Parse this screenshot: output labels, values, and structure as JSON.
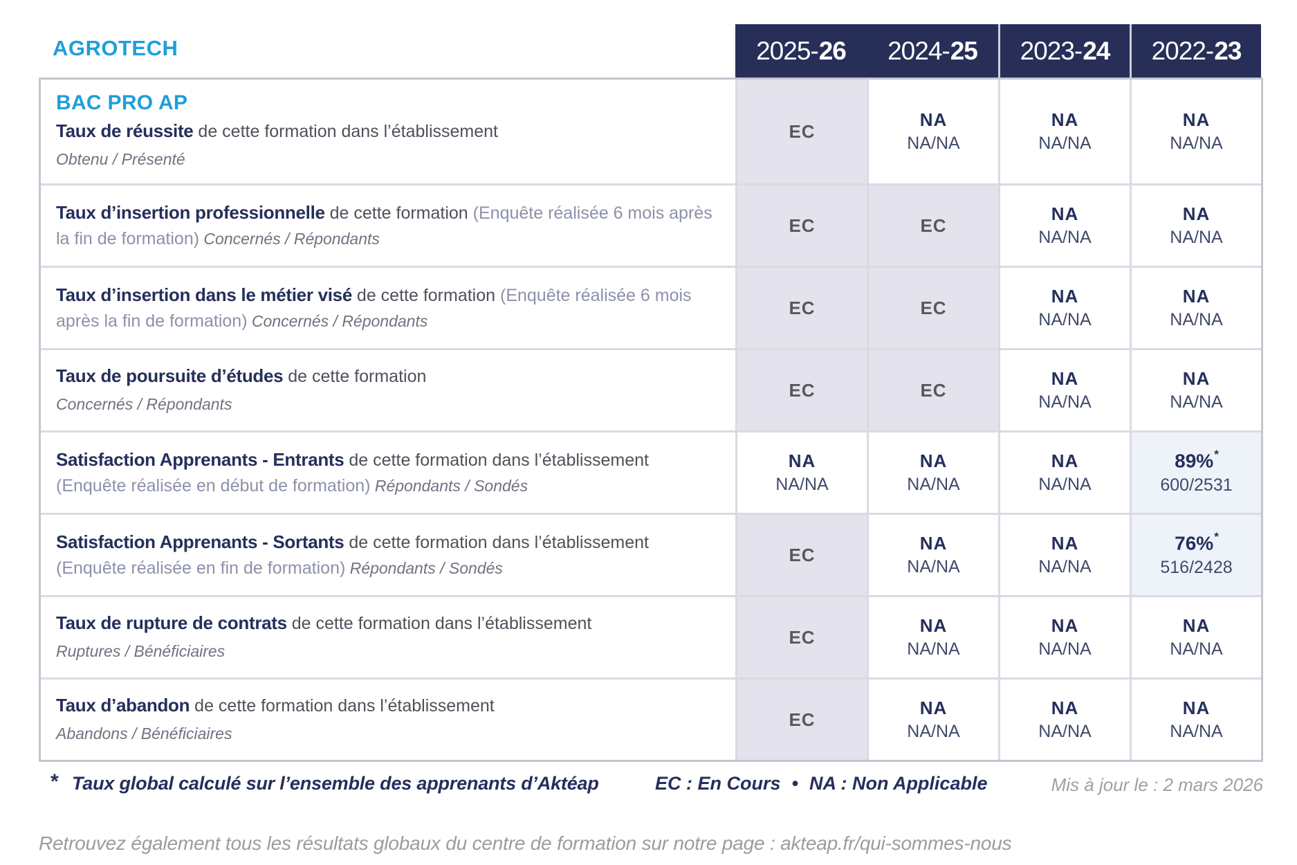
{
  "brand": {
    "title": "AGROTECH"
  },
  "header": {
    "columns": [
      {
        "prefix": "2025-",
        "bold": "26"
      },
      {
        "prefix": "2024-",
        "bold": "25"
      },
      {
        "prefix": "2023-",
        "bold": "24"
      },
      {
        "prefix": "2022-",
        "bold": "23"
      }
    ]
  },
  "table": {
    "program": "BAC PRO AP",
    "rows": [
      {
        "title": "Taux de réussite",
        "mid": " de cette formation dans l’établissement",
        "sub": "Obtenu / Présenté",
        "cells": [
          {
            "value": "EC"
          },
          {
            "value": "NA",
            "sub": "NA/NA"
          },
          {
            "value": "NA",
            "sub": "NA/NA"
          },
          {
            "value": "NA",
            "sub": "NA/NA"
          }
        ]
      },
      {
        "title": "Taux d’insertion professionnelle",
        "mid": " de cette formation ",
        "paren": "(Enquête réalisée 6 mois après la fin de formation)",
        "sub": " Concernés / Répondants",
        "cells": [
          {
            "value": "EC"
          },
          {
            "value": "EC"
          },
          {
            "value": "NA",
            "sub": "NA/NA"
          },
          {
            "value": "NA",
            "sub": "NA/NA"
          }
        ]
      },
      {
        "title": "Taux d’insertion dans le métier visé",
        "mid": " de cette formation ",
        "paren": "(Enquête réalisée 6 mois après la fin de formation)",
        "sub": " Concernés / Répondants",
        "cells": [
          {
            "value": "EC"
          },
          {
            "value": "EC"
          },
          {
            "value": "NA",
            "sub": "NA/NA"
          },
          {
            "value": "NA",
            "sub": "NA/NA"
          }
        ]
      },
      {
        "title": "Taux de poursuite d’études",
        "mid": " de cette formation",
        "sub": "Concernés / Répondants",
        "cells": [
          {
            "value": "EC"
          },
          {
            "value": "EC"
          },
          {
            "value": "NA",
            "sub": "NA/NA"
          },
          {
            "value": "NA",
            "sub": "NA/NA"
          }
        ]
      },
      {
        "title": "Satisfaction Apprenants - Entrants",
        "mid": " de cette formation dans l’établissement ",
        "paren": "(Enquête réalisée en début de formation)",
        "sub": " Répondants / Sondés",
        "cells": [
          {
            "value": "NA",
            "sub": "NA/NA"
          },
          {
            "value": "NA",
            "sub": "NA/NA"
          },
          {
            "value": "NA",
            "sub": "NA/NA"
          },
          {
            "value": "89%",
            "sup": "*",
            "sub": "600/2531"
          }
        ]
      },
      {
        "title": "Satisfaction Apprenants - Sortants",
        "mid": " de cette formation dans l’établissement ",
        "paren": "(Enquête réalisée en fin de formation)",
        "sub": " Répondants / Sondés",
        "cells": [
          {
            "value": "EC"
          },
          {
            "value": "NA",
            "sub": "NA/NA"
          },
          {
            "value": "NA",
            "sub": "NA/NA"
          },
          {
            "value": "76%",
            "sup": "*",
            "sub": "516/2428"
          }
        ]
      },
      {
        "title": "Taux de rupture de contrats",
        "mid": " de cette formation dans l’établissement",
        "sub": "Ruptures / Bénéficiaires",
        "cells": [
          {
            "value": "EC"
          },
          {
            "value": "NA",
            "sub": "NA/NA"
          },
          {
            "value": "NA",
            "sub": "NA/NA"
          },
          {
            "value": "NA",
            "sub": "NA/NA"
          }
        ]
      },
      {
        "title": "Taux d’abandon",
        "mid": " de cette formation dans l’établissement",
        "sub": "Abandons / Bénéficiaires",
        "cells": [
          {
            "value": "EC"
          },
          {
            "value": "NA",
            "sub": "NA/NA"
          },
          {
            "value": "NA",
            "sub": "NA/NA"
          },
          {
            "value": "NA",
            "sub": "NA/NA"
          }
        ]
      }
    ]
  },
  "footer": {
    "star": "*",
    "note": "Taux global calculé sur l’ensemble des apprenants d’Aktéap",
    "legend_ec": "EC : En Cours",
    "bullet": "•",
    "legend_na": "NA : Non Applicable",
    "updated": "Mis à jour le : 2 mars 2026"
  },
  "bottom_note": "Retrouvez également tous les résultats globaux du centre de formation sur notre page : akteap.fr/qui-sommes-nous",
  "colors": {
    "navy": "#272f58",
    "cyan": "#1e9fda",
    "cell_gray": "#e4e3ed",
    "cell_blue": "#edf3f9",
    "text_navy": "#252f5b",
    "text_gray": "#4f505a",
    "muted": "#8d91a9",
    "footer_gray": "#9a9ca2"
  }
}
